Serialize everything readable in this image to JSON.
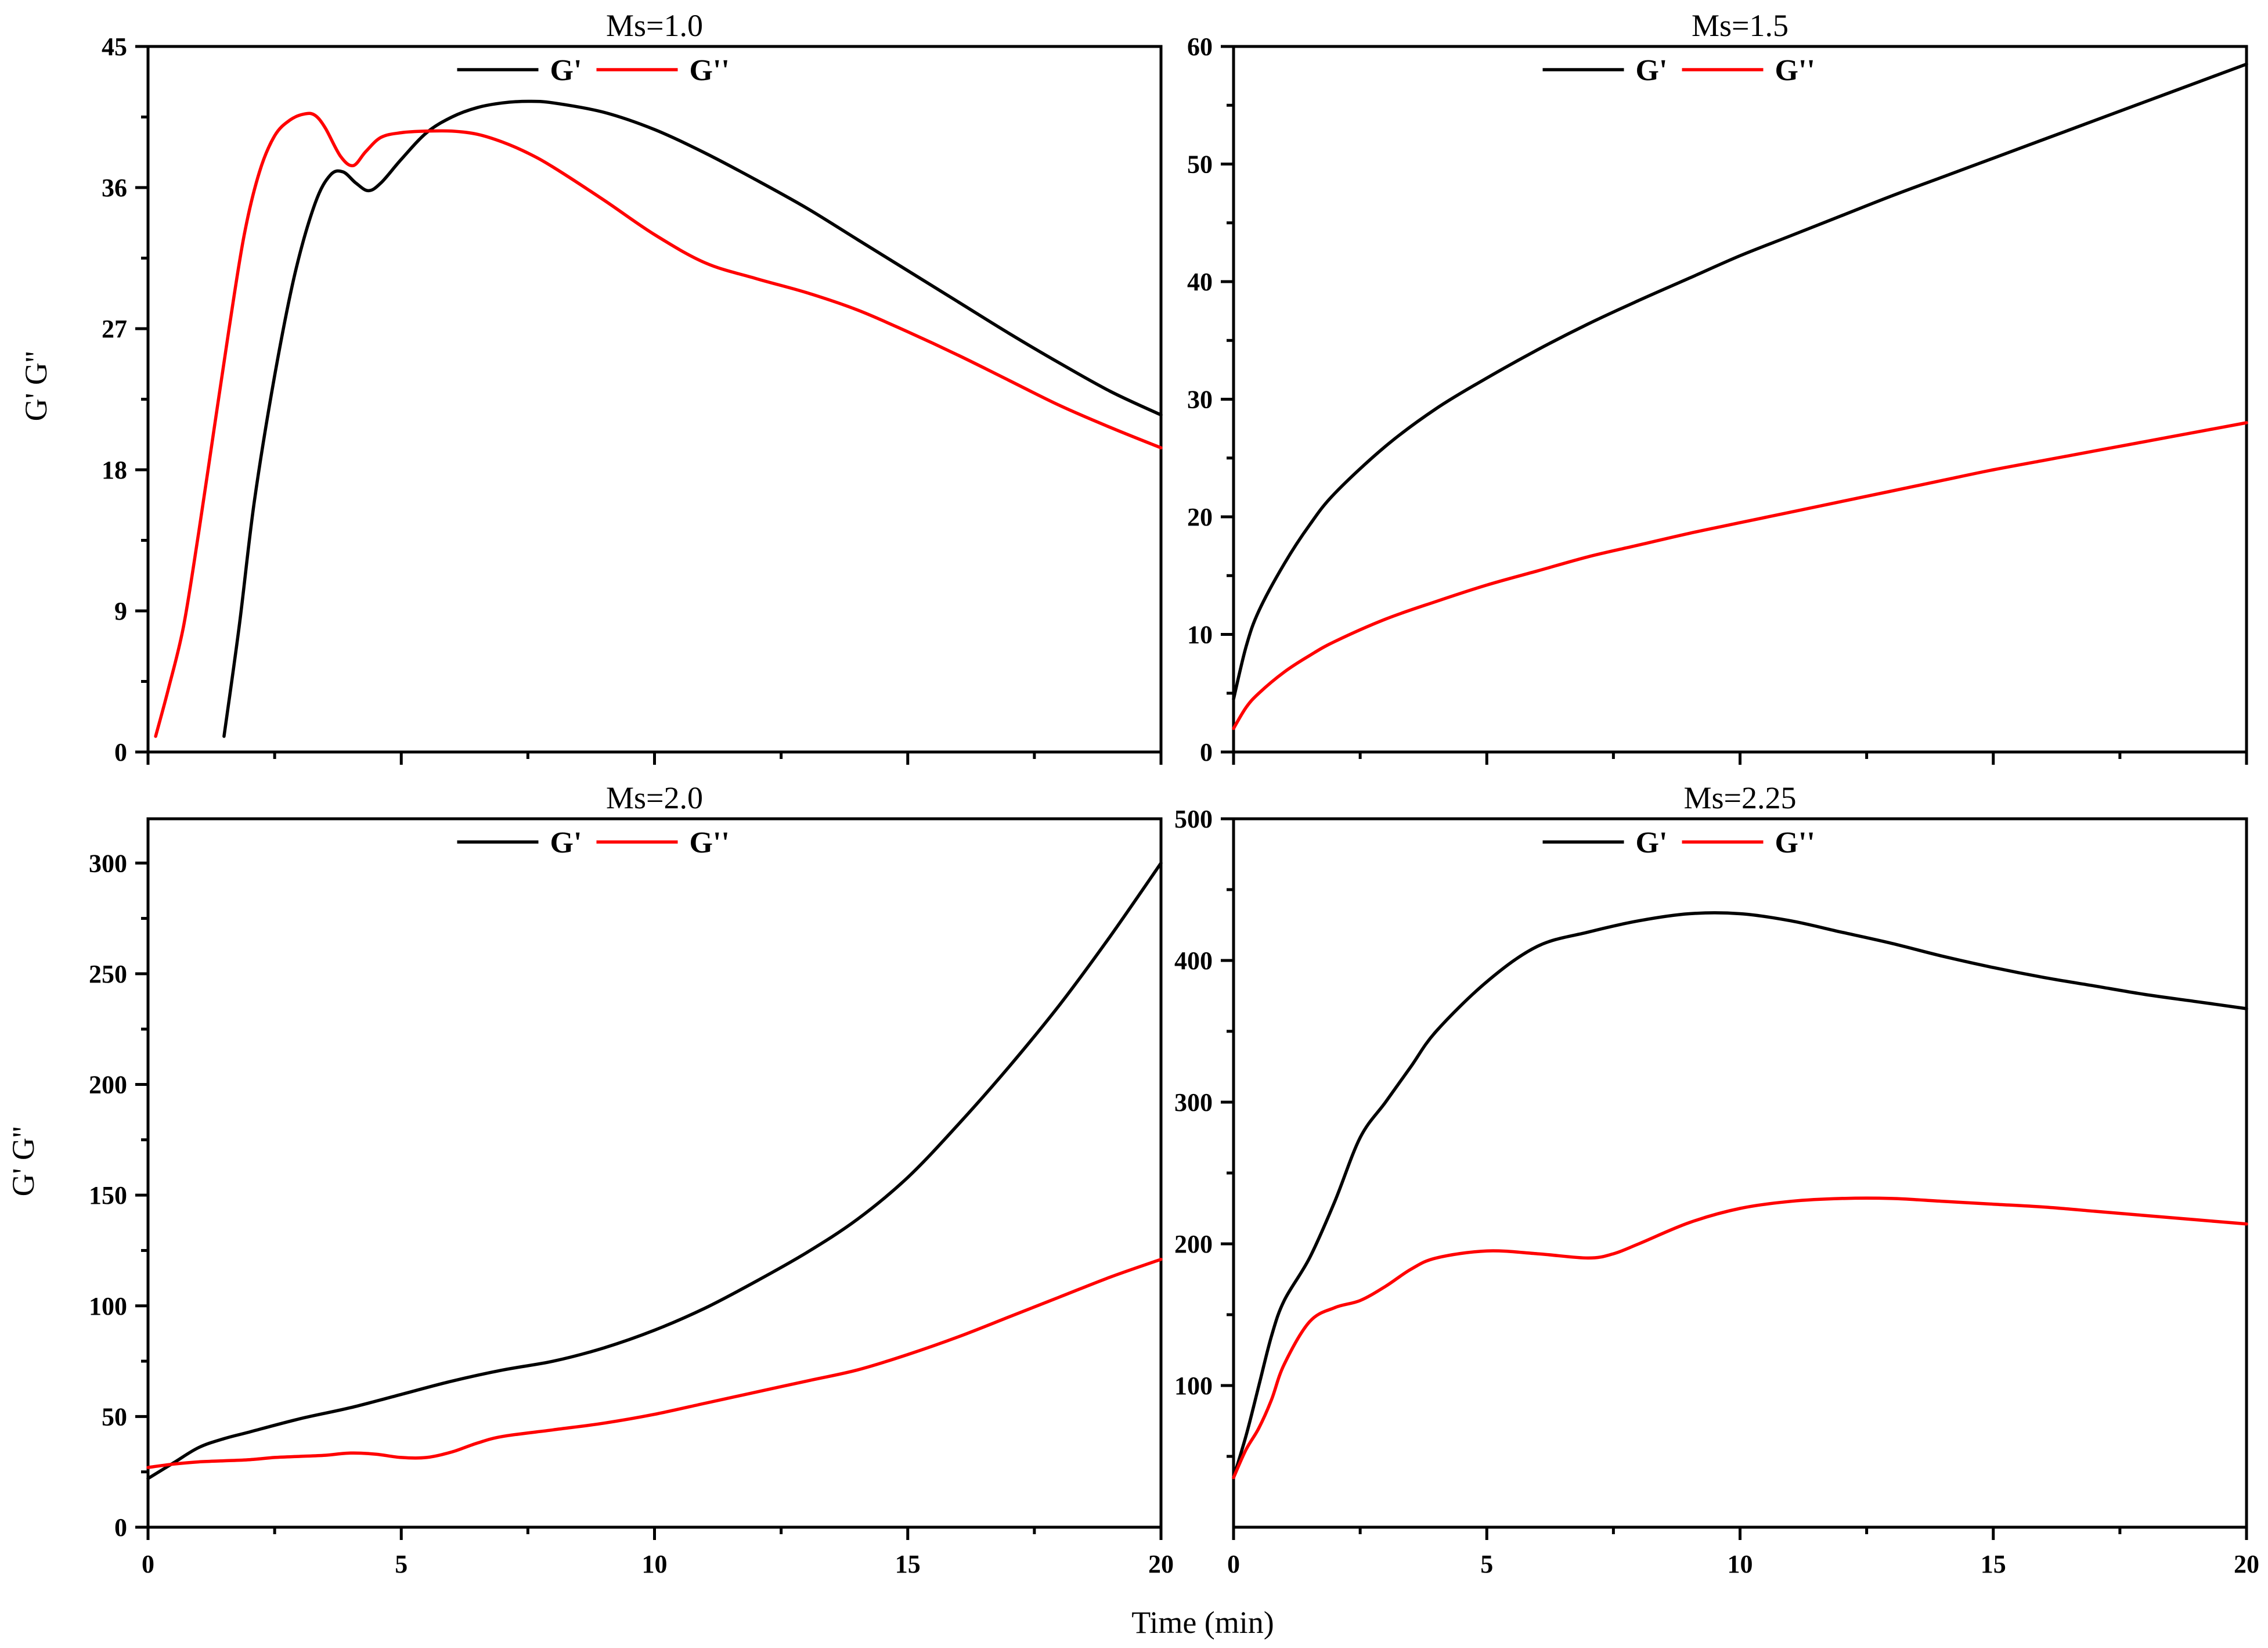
{
  "figure": {
    "xlabel_shared": "Time (min)",
    "ylabel_shared": "G' G''"
  },
  "colors": {
    "g_prime": "#000000",
    "g_double_prime": "#ff0000"
  },
  "chart_data": [
    {
      "type": "line",
      "title": "Ms=1.0",
      "xlabel": "",
      "ylabel": "G' G''",
      "xlim": [
        0,
        20
      ],
      "ylim": [
        0,
        45
      ],
      "xticks": [
        0,
        5,
        10,
        15,
        20
      ],
      "show_xticklabels": false,
      "yticks": [
        0,
        9,
        18,
        27,
        36,
        45
      ],
      "legend": "top-center",
      "series": [
        {
          "name": "G'",
          "color": "#000000",
          "x": [
            1.5,
            1.8,
            2.1,
            2.5,
            2.9,
            3.3,
            3.6,
            3.85,
            4.1,
            4.35,
            4.6,
            5.0,
            5.5,
            6.0,
            6.5,
            7.0,
            7.5,
            8.0,
            9.0,
            10.0,
            11.0,
            12.0,
            13.0,
            14.0,
            15.0,
            16.0,
            17.0,
            18.0,
            19.0,
            20.0
          ],
          "y": [
            1.0,
            8.0,
            16.0,
            24.0,
            30.5,
            35.0,
            36.8,
            37.0,
            36.3,
            35.8,
            36.3,
            37.8,
            39.5,
            40.5,
            41.1,
            41.4,
            41.5,
            41.4,
            40.8,
            39.7,
            38.2,
            36.5,
            34.7,
            32.7,
            30.7,
            28.7,
            26.7,
            24.8,
            23.0,
            21.5
          ]
        },
        {
          "name": "G''",
          "color": "#ff0000",
          "x": [
            0.15,
            0.4,
            0.7,
            1.0,
            1.3,
            1.6,
            1.9,
            2.2,
            2.5,
            2.8,
            3.1,
            3.3,
            3.5,
            3.8,
            4.05,
            4.3,
            4.6,
            5.0,
            5.5,
            6.0,
            6.5,
            7.0,
            7.5,
            8.0,
            9.0,
            10.0,
            11.0,
            12.0,
            13.0,
            14.0,
            15.0,
            16.0,
            17.0,
            18.0,
            19.0,
            20.0
          ],
          "y": [
            1.0,
            4.0,
            8.0,
            14.0,
            20.5,
            27.0,
            33.0,
            37.0,
            39.3,
            40.3,
            40.7,
            40.6,
            39.8,
            38.0,
            37.4,
            38.3,
            39.2,
            39.5,
            39.6,
            39.6,
            39.4,
            38.9,
            38.2,
            37.3,
            35.2,
            33.0,
            31.2,
            30.2,
            29.3,
            28.2,
            26.8,
            25.3,
            23.7,
            22.1,
            20.7,
            19.4
          ]
        }
      ]
    },
    {
      "type": "line",
      "title": "Ms=1.5",
      "xlabel": "",
      "ylabel": "",
      "xlim": [
        0,
        20
      ],
      "ylim": [
        0,
        60
      ],
      "xticks": [
        0,
        5,
        10,
        15,
        20
      ],
      "show_xticklabels": false,
      "yticks": [
        0,
        10,
        20,
        30,
        40,
        50,
        60
      ],
      "legend": "top-center",
      "series": [
        {
          "name": "G'",
          "color": "#000000",
          "x": [
            0,
            0.25,
            0.5,
            1,
            1.5,
            2,
            3,
            4,
            5,
            6,
            7,
            8,
            9,
            10,
            11,
            12,
            13,
            14,
            15,
            16,
            17,
            18,
            19,
            20
          ],
          "y": [
            4.5,
            9.0,
            12.0,
            16.0,
            19.3,
            22.0,
            26.0,
            29.2,
            31.8,
            34.2,
            36.4,
            38.4,
            40.3,
            42.2,
            43.9,
            45.6,
            47.3,
            48.9,
            50.5,
            52.1,
            53.7,
            55.3,
            56.9,
            58.5
          ]
        },
        {
          "name": "G''",
          "color": "#ff0000",
          "x": [
            0,
            0.25,
            0.5,
            1,
            1.5,
            2,
            3,
            4,
            5,
            6,
            7,
            8,
            9,
            10,
            11,
            12,
            13,
            14,
            15,
            16,
            17,
            18,
            19,
            20
          ],
          "y": [
            2.0,
            3.8,
            5.0,
            6.8,
            8.2,
            9.4,
            11.3,
            12.8,
            14.2,
            15.4,
            16.6,
            17.6,
            18.6,
            19.5,
            20.4,
            21.3,
            22.2,
            23.1,
            24.0,
            24.8,
            25.6,
            26.4,
            27.2,
            28.0
          ]
        }
      ]
    },
    {
      "type": "line",
      "title": "Ms=2.0",
      "xlabel": "",
      "ylabel": "G' G''",
      "xlim": [
        0,
        20
      ],
      "ylim": [
        0,
        320
      ],
      "xticks": [
        0,
        5,
        10,
        15,
        20
      ],
      "yticks": [
        0,
        50,
        100,
        150,
        200,
        250,
        300
      ],
      "legend": "top-center",
      "series": [
        {
          "name": "G'",
          "color": "#000000",
          "x": [
            0,
            0.5,
            1,
            1.5,
            2,
            3,
            4,
            5,
            6,
            7,
            8,
            9,
            10,
            11,
            12,
            13,
            14,
            15,
            16,
            17,
            18,
            19,
            20
          ],
          "y": [
            22,
            29,
            36,
            40,
            43,
            49,
            54,
            60,
            66,
            71,
            75,
            81,
            89,
            99,
            111,
            124,
            139,
            158,
            182,
            208,
            236,
            267,
            300
          ]
        },
        {
          "name": "G''",
          "color": "#ff0000",
          "x": [
            0,
            0.5,
            1,
            1.5,
            2,
            2.5,
            3,
            3.5,
            4,
            4.5,
            5,
            5.5,
            6,
            6.5,
            7,
            8,
            9,
            10,
            11,
            12,
            13,
            14,
            15,
            16,
            17,
            18,
            19,
            20
          ],
          "y": [
            27,
            28.5,
            29.5,
            30,
            30.5,
            31.5,
            32,
            32.5,
            33.5,
            33,
            31.5,
            31.5,
            34,
            38,
            41,
            44,
            47,
            51,
            56,
            61,
            66,
            71,
            78,
            86,
            95,
            104,
            113,
            121
          ]
        }
      ]
    },
    {
      "type": "line",
      "title": "Ms=2.25",
      "xlabel": "",
      "ylabel": "",
      "xlim": [
        0,
        20
      ],
      "ylim": [
        0,
        500
      ],
      "xticks": [
        0,
        5,
        10,
        15,
        20
      ],
      "yticks": [
        100,
        200,
        300,
        400,
        500
      ],
      "legend": "top-center",
      "series": [
        {
          "name": "G'",
          "color": "#000000",
          "x": [
            0,
            0.25,
            0.5,
            0.75,
            1,
            1.5,
            2,
            2.5,
            3,
            3.5,
            4,
            5,
            6,
            7,
            8,
            9,
            10,
            11,
            12,
            13,
            14,
            15,
            16,
            17,
            18,
            19,
            20
          ],
          "y": [
            35,
            65,
            100,
            135,
            160,
            190,
            230,
            275,
            300,
            325,
            350,
            385,
            410,
            420,
            428,
            433,
            433,
            428,
            420,
            412,
            403,
            395,
            388,
            382,
            376,
            371,
            366
          ]
        },
        {
          "name": "G''",
          "color": "#ff0000",
          "x": [
            0,
            0.25,
            0.5,
            0.75,
            1,
            1.5,
            2,
            2.5,
            3,
            3.5,
            4,
            5,
            6,
            7,
            7.5,
            8,
            9,
            10,
            11,
            12,
            13,
            14,
            15,
            16,
            17,
            18,
            19,
            20
          ],
          "y": [
            35,
            55,
            70,
            90,
            115,
            145,
            155,
            160,
            170,
            182,
            190,
            195,
            193,
            190,
            193,
            200,
            215,
            225,
            230,
            232,
            232,
            230,
            228,
            226,
            223,
            220,
            217,
            214
          ]
        }
      ]
    }
  ]
}
